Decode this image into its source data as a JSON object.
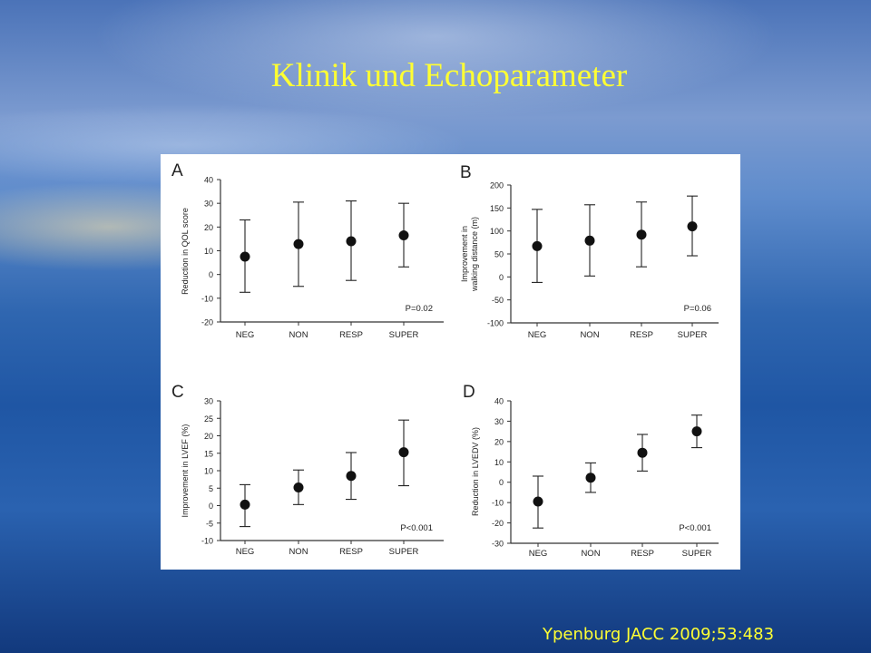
{
  "slide": {
    "title": "Klinik und Echoparameter",
    "citation": "Ypenburg JACC 2009;53:483"
  },
  "chart_data": [
    {
      "panel": "A",
      "type": "scatter",
      "error_bars": true,
      "categories": [
        "NEG",
        "NON",
        "RESP",
        "SUPER"
      ],
      "values": [
        7.5,
        12.8,
        14.0,
        16.5
      ],
      "lower": [
        -7.5,
        -5,
        -2.5,
        3.2
      ],
      "upper": [
        23,
        30.5,
        31,
        30
      ],
      "ylabel": "Reduction in QOL score",
      "yticks": [
        40,
        30,
        20,
        10,
        0,
        -10,
        -20
      ],
      "ylim": [
        -20,
        40
      ],
      "annotation": "P=0.02"
    },
    {
      "panel": "B",
      "type": "scatter",
      "error_bars": true,
      "categories": [
        "NEG",
        "NON",
        "RESP",
        "SUPER"
      ],
      "values": [
        67,
        79,
        92,
        110
      ],
      "lower": [
        -12,
        2,
        22,
        46
      ],
      "upper": [
        147,
        157,
        163,
        176
      ],
      "ylabel": [
        "Improvement in",
        "walking distance (m)"
      ],
      "yticks": [
        200,
        150,
        100,
        50,
        0,
        -50,
        -100
      ],
      "ylim": [
        -100,
        200
      ],
      "annotation": "P=0.06"
    },
    {
      "panel": "C",
      "type": "scatter",
      "error_bars": true,
      "categories": [
        "NEG",
        "NON",
        "RESP",
        "SUPER"
      ],
      "values": [
        0.3,
        5.2,
        8.5,
        15.3
      ],
      "lower": [
        -6,
        0.3,
        1.8,
        5.7
      ],
      "upper": [
        6,
        10.2,
        15.2,
        24.5
      ],
      "ylabel": "Improvement in LVEF (%)",
      "yticks": [
        30,
        25,
        20,
        15,
        10,
        5,
        0,
        -5,
        -10
      ],
      "ylim": [
        -10,
        30
      ],
      "annotation": "P<0.001"
    },
    {
      "panel": "D",
      "type": "scatter",
      "error_bars": true,
      "categories": [
        "NEG",
        "NON",
        "RESP",
        "SUPER"
      ],
      "values": [
        -9.5,
        2.2,
        14.5,
        25
      ],
      "lower": [
        -22.5,
        -5,
        5.5,
        17
      ],
      "upper": [
        3,
        9.5,
        23.5,
        33
      ],
      "ylabel": "Reduction in LVEDV (%)",
      "yticks": [
        40,
        30,
        20,
        10,
        0,
        -10,
        -20,
        -30
      ],
      "ylim": [
        -30,
        40
      ],
      "annotation": "P<0.001"
    }
  ]
}
